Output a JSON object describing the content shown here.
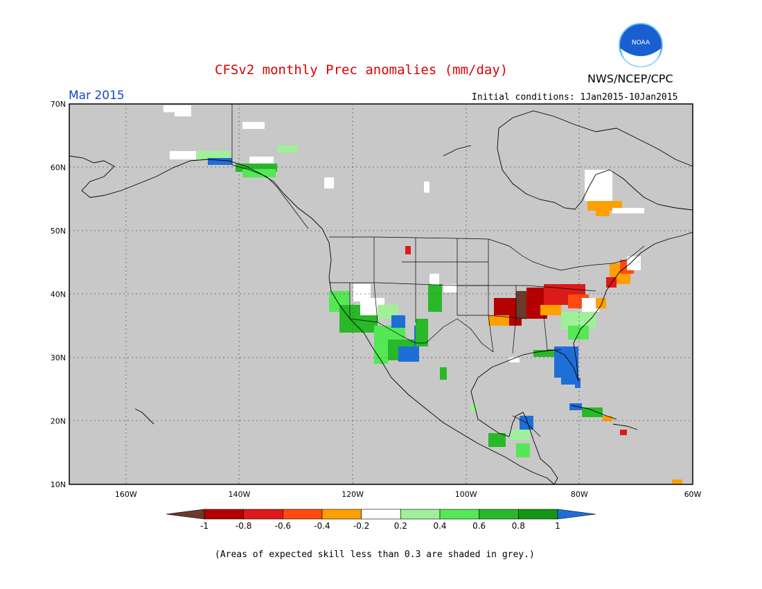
{
  "header": {
    "title": "CFSv2 monthly Prec anomalies (mm/day)",
    "agency": "NWS/NCEP/CPC",
    "logo_text": "NOAA",
    "valid_month": "Mar 2015",
    "initial_conditions": "Initial conditions: 1Jan2015-10Jan2015"
  },
  "map": {
    "lat_ticks": [
      "70N",
      "60N",
      "50N",
      "40N",
      "30N",
      "20N",
      "10N"
    ],
    "lon_ticks": [
      "160W",
      "140W",
      "120W",
      "100W",
      "80W",
      "60W"
    ],
    "domain": {
      "lat_range": [
        10,
        70
      ],
      "lon_range": [
        -170,
        -60
      ]
    },
    "background_color": "#c8c8c8"
  },
  "legend": {
    "tick_labels": [
      "-1",
      "-0.8",
      "-0.6",
      "-0.4",
      "-0.2",
      "0.2",
      "0.4",
      "0.6",
      "0.8",
      "1"
    ],
    "colors": [
      "#6b3a28",
      "#b40000",
      "#dd1a1a",
      "#ff4a10",
      "#ff9f00",
      "#ffffff",
      "#a0f09a",
      "#55e855",
      "#28b828",
      "#149614",
      "#1e6ed8"
    ]
  },
  "footnote": "(Areas of expected skill less than 0.3 are shaded in grey.)"
}
